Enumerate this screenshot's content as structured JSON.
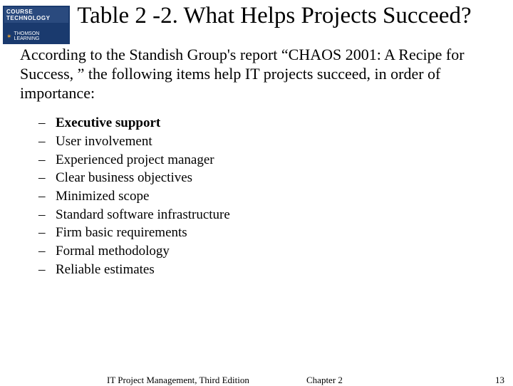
{
  "logo": {
    "top_text": "COURSE TECHNOLOGY",
    "bottom_text": "THOMSON LEARNING"
  },
  "title": "Table 2 -2. What Helps Projects Succeed?",
  "intro": "According to the Standish Group's report “CHAOS 2001: A Recipe for Success, ” the following items help IT projects succeed, in order of importance:",
  "items": [
    {
      "text": "Executive support",
      "bold": true
    },
    {
      "text": "User involvement",
      "bold": false
    },
    {
      "text": "Experienced project manager",
      "bold": false
    },
    {
      "text": "Clear business objectives",
      "bold": false
    },
    {
      "text": "Minimized scope",
      "bold": false
    },
    {
      "text": "Standard software infrastructure",
      "bold": false
    },
    {
      "text": "Firm basic requirements",
      "bold": false
    },
    {
      "text": "Formal methodology",
      "bold": false
    },
    {
      "text": "Reliable estimates",
      "bold": false
    }
  ],
  "footer": {
    "left": "IT Project Management, Third Edition",
    "center": "Chapter 2",
    "page": "13"
  },
  "colors": {
    "background": "#ffffff",
    "text": "#000000",
    "logo_bg": "#1a3a6e",
    "logo_top_bg": "#2a4a7e",
    "logo_text": "#ffffff",
    "logo_star": "#e8a030"
  },
  "typography": {
    "title_fontsize": 33,
    "intro_fontsize": 22,
    "list_fontsize": 19,
    "footer_fontsize": 13,
    "font_family": "Times New Roman"
  }
}
